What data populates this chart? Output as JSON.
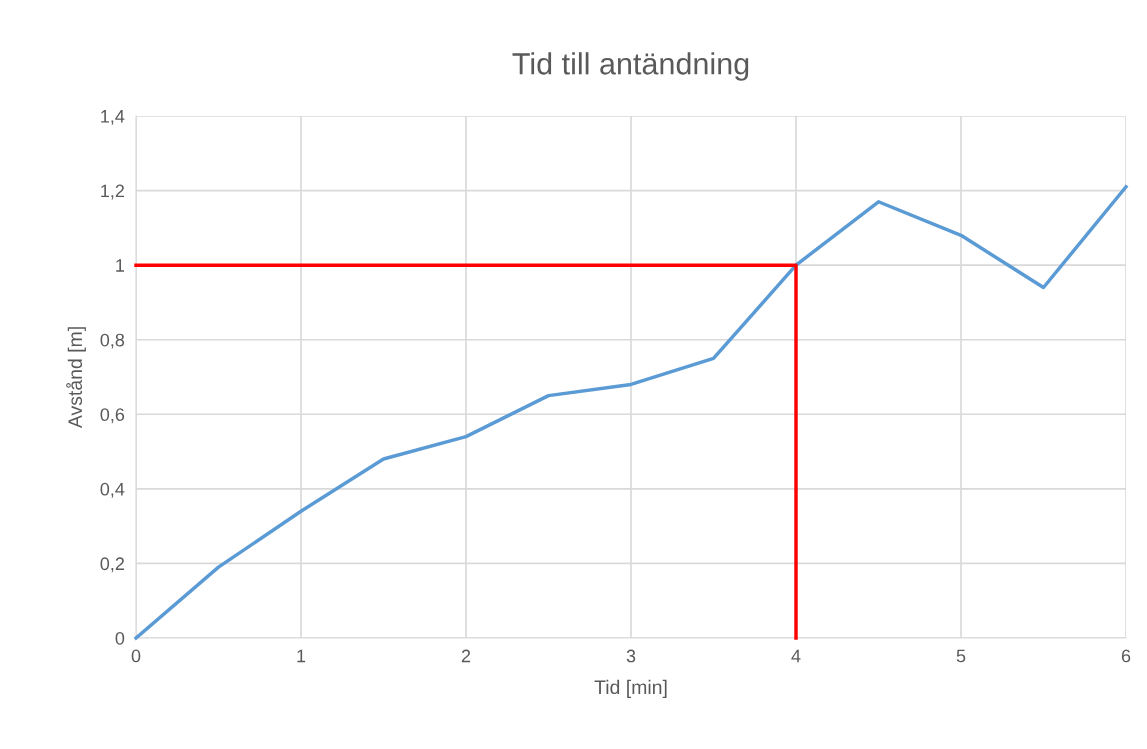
{
  "chart_data": {
    "type": "line",
    "title": "Tid till antändning",
    "xlabel": "Tid [min]",
    "ylabel": "Avstånd [m]",
    "series": [
      {
        "color": "#5b9bd5",
        "x": [
          0,
          0.5,
          1,
          1.5,
          2,
          2.5,
          3,
          3.5,
          4,
          4.5,
          5,
          5.5,
          6
        ],
        "values": [
          0,
          0.19,
          0.34,
          0.48,
          0.54,
          0.65,
          0.68,
          0.75,
          1.0,
          1.17,
          1.08,
          0.94,
          1.21
        ]
      },
      {
        "color": "#ff0000",
        "x": [
          0,
          4,
          4
        ],
        "values": [
          1,
          1,
          0
        ]
      }
    ],
    "xlim": [
      0,
      6
    ],
    "xticks": [
      0,
      1,
      2,
      3,
      4,
      5,
      6
    ],
    "ylim": [
      0,
      1.4
    ],
    "yticks": [
      0,
      {
        "value": 0.2,
        "label": "0,2"
      },
      {
        "value": 0.4,
        "label": "0,4"
      },
      {
        "value": 0.6,
        "label": "0,6"
      },
      {
        "value": 0.8,
        "label": "0,8"
      },
      1,
      {
        "value": 1.2,
        "label": "1,2"
      },
      {
        "value": 1.4,
        "label": "1,4"
      }
    ],
    "grid": true,
    "marker": "none",
    "line_style": "solid"
  }
}
